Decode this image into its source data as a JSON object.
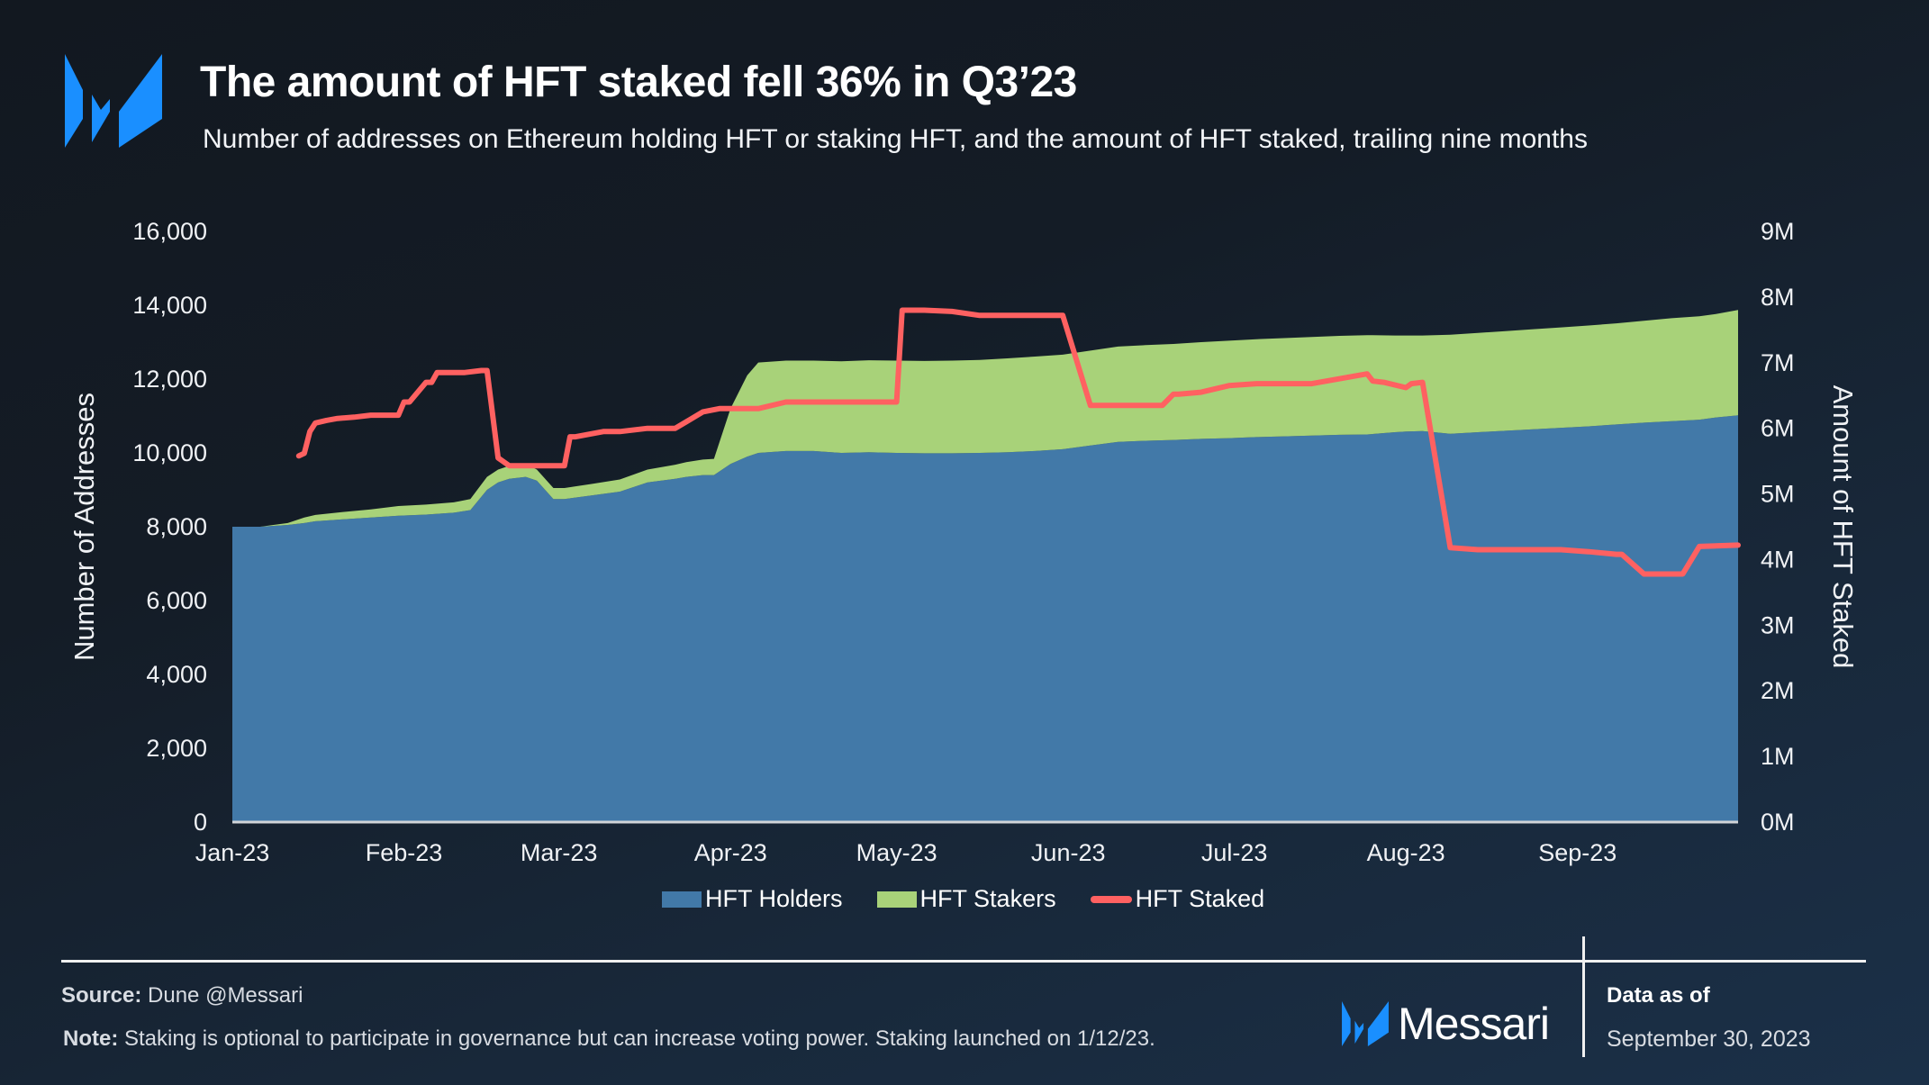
{
  "header": {
    "title": "The amount of HFT staked fell 36% in Q3’23",
    "subtitle": "Number of addresses on Ethereum holding HFT or staking HFT, and the amount of HFT staked, trailing nine months"
  },
  "colors": {
    "holders": "#4279a8",
    "stakers": "#a8d279",
    "staked": "#ff6161",
    "brand_blue": "#1a8fff",
    "axis_line": "#d0d4d8"
  },
  "legend": [
    {
      "label": "HFT Holders",
      "type": "area"
    },
    {
      "label": "HFT Stakers",
      "type": "area"
    },
    {
      "label": "HFT Staked",
      "type": "line"
    }
  ],
  "chart_data": {
    "type": "area",
    "title": "The amount of HFT staked fell 36% in Q3’23",
    "subtitle": "Number of addresses on Ethereum holding HFT or staking HFT, and the amount of HFT staked, trailing nine months",
    "xlabel": "",
    "ylabel": "Number of Addresses",
    "y2label": "Amount of HFT Staked",
    "x_ticks": [
      "Jan-23",
      "Feb-23",
      "Mar-23",
      "Apr-23",
      "May-23",
      "Jun-23",
      "Jul-23",
      "Aug-23",
      "Sep-23"
    ],
    "y_ticks": [
      "0",
      "2,000",
      "4,000",
      "6,000",
      "8,000",
      "10,000",
      "12,000",
      "14,000",
      "16,000"
    ],
    "y2_ticks": [
      "0M",
      "1M",
      "2M",
      "3M",
      "4M",
      "5M",
      "6M",
      "7M",
      "8M",
      "9M"
    ],
    "ylim": [
      0,
      16000
    ],
    "y2lim": [
      0,
      9000000
    ],
    "stacked": true,
    "grid": false,
    "legend_position": "bottom",
    "x_days": [
      0,
      5,
      10,
      13,
      15,
      20,
      25,
      30,
      35,
      40,
      43,
      46,
      48,
      50,
      53,
      55,
      58,
      60,
      65,
      70,
      75,
      80,
      82,
      85,
      87,
      90,
      93,
      95,
      100,
      105,
      110,
      115,
      120,
      125,
      130,
      135,
      140,
      145,
      150,
      155,
      160,
      165,
      170,
      175,
      180,
      185,
      190,
      195,
      200,
      205,
      210,
      212,
      215,
      220,
      225,
      230,
      235,
      240,
      245,
      250,
      255,
      260,
      265,
      268,
      272
    ],
    "series": [
      {
        "name": "HFT Holders",
        "axis": "left",
        "type": "area",
        "values": [
          8000,
          8000,
          8050,
          8100,
          8150,
          8200,
          8250,
          8300,
          8330,
          8380,
          8450,
          9000,
          9200,
          9300,
          9350,
          9250,
          8750,
          8750,
          8850,
          8950,
          9200,
          9300,
          9350,
          9400,
          9400,
          9700,
          9900,
          10000,
          10050,
          10050,
          10000,
          10020,
          10000,
          9990,
          9990,
          10000,
          10020,
          10050,
          10100,
          10200,
          10300,
          10330,
          10350,
          10380,
          10400,
          10430,
          10450,
          10470,
          10490,
          10500,
          10560,
          10580,
          10590,
          10520,
          10560,
          10600,
          10640,
          10680,
          10720,
          10770,
          10820,
          10860,
          10900,
          10960,
          11020
        ]
      },
      {
        "name": "HFT Stakers",
        "axis": "left",
        "type": "area",
        "values": [
          0,
          0,
          50,
          150,
          170,
          200,
          220,
          260,
          270,
          280,
          300,
          350,
          350,
          350,
          350,
          300,
          300,
          300,
          310,
          330,
          350,
          380,
          400,
          420,
          440,
          1500,
          2200,
          2450,
          2450,
          2450,
          2480,
          2490,
          2500,
          2500,
          2510,
          2520,
          2540,
          2560,
          2560,
          2570,
          2580,
          2590,
          2600,
          2620,
          2640,
          2650,
          2660,
          2670,
          2680,
          2690,
          2620,
          2600,
          2590,
          2680,
          2690,
          2700,
          2710,
          2720,
          2730,
          2740,
          2760,
          2790,
          2800,
          2800,
          2850
        ]
      },
      {
        "name": "HFT Staked",
        "axis": "right",
        "type": "line",
        "start_day": 12,
        "x_days": [
          12,
          13,
          14,
          15,
          17,
          19,
          22,
          25,
          30,
          31,
          32,
          35,
          36,
          37,
          40,
          42,
          45,
          46,
          48,
          50,
          55,
          58,
          59,
          60,
          61,
          62,
          67,
          70,
          75,
          80,
          84,
          85,
          88,
          90,
          95,
          100,
          102,
          103,
          110,
          115,
          120,
          121,
          125,
          130,
          135,
          140,
          141,
          145,
          147,
          150,
          155,
          160,
          165,
          168,
          170,
          171,
          175,
          180,
          185,
          190,
          195,
          205,
          206,
          208,
          212,
          213,
          215,
          220,
          225,
          230,
          235,
          240,
          245,
          250,
          251,
          255,
          260,
          262,
          265,
          272
        ],
        "values": [
          5580,
          5620,
          5950,
          6080,
          6120,
          6150,
          6170,
          6200,
          6200,
          6400,
          6400,
          6700,
          6700,
          6850,
          6850,
          6850,
          6880,
          6880,
          5550,
          5430,
          5430,
          5430,
          5430,
          5430,
          5870,
          5870,
          5950,
          5950,
          6000,
          6000,
          6200,
          6250,
          6300,
          6300,
          6300,
          6400,
          6400,
          6400,
          6400,
          6400,
          6400,
          7800,
          7800,
          7780,
          7720,
          7720,
          7720,
          7720,
          7720,
          7720,
          6350,
          6350,
          6350,
          6350,
          6520,
          6520,
          6550,
          6650,
          6680,
          6680,
          6680,
          6830,
          6720,
          6700,
          6620,
          6680,
          6700,
          4180,
          4150,
          4150,
          4150,
          4150,
          4120,
          4080,
          4080,
          3780,
          3780,
          3780,
          4200,
          4220
        ]
      }
    ]
  },
  "footer": {
    "source_label": "Source:",
    "source_text": "Dune @Messari",
    "note_label": "Note:",
    "note_text": "Staking is optional to participate in governance but can increase voting power. Staking launched on 1/12/23.",
    "brand": "Messari",
    "data_as_of_label": "Data as of",
    "data_as_of_date": "September 30, 2023"
  }
}
